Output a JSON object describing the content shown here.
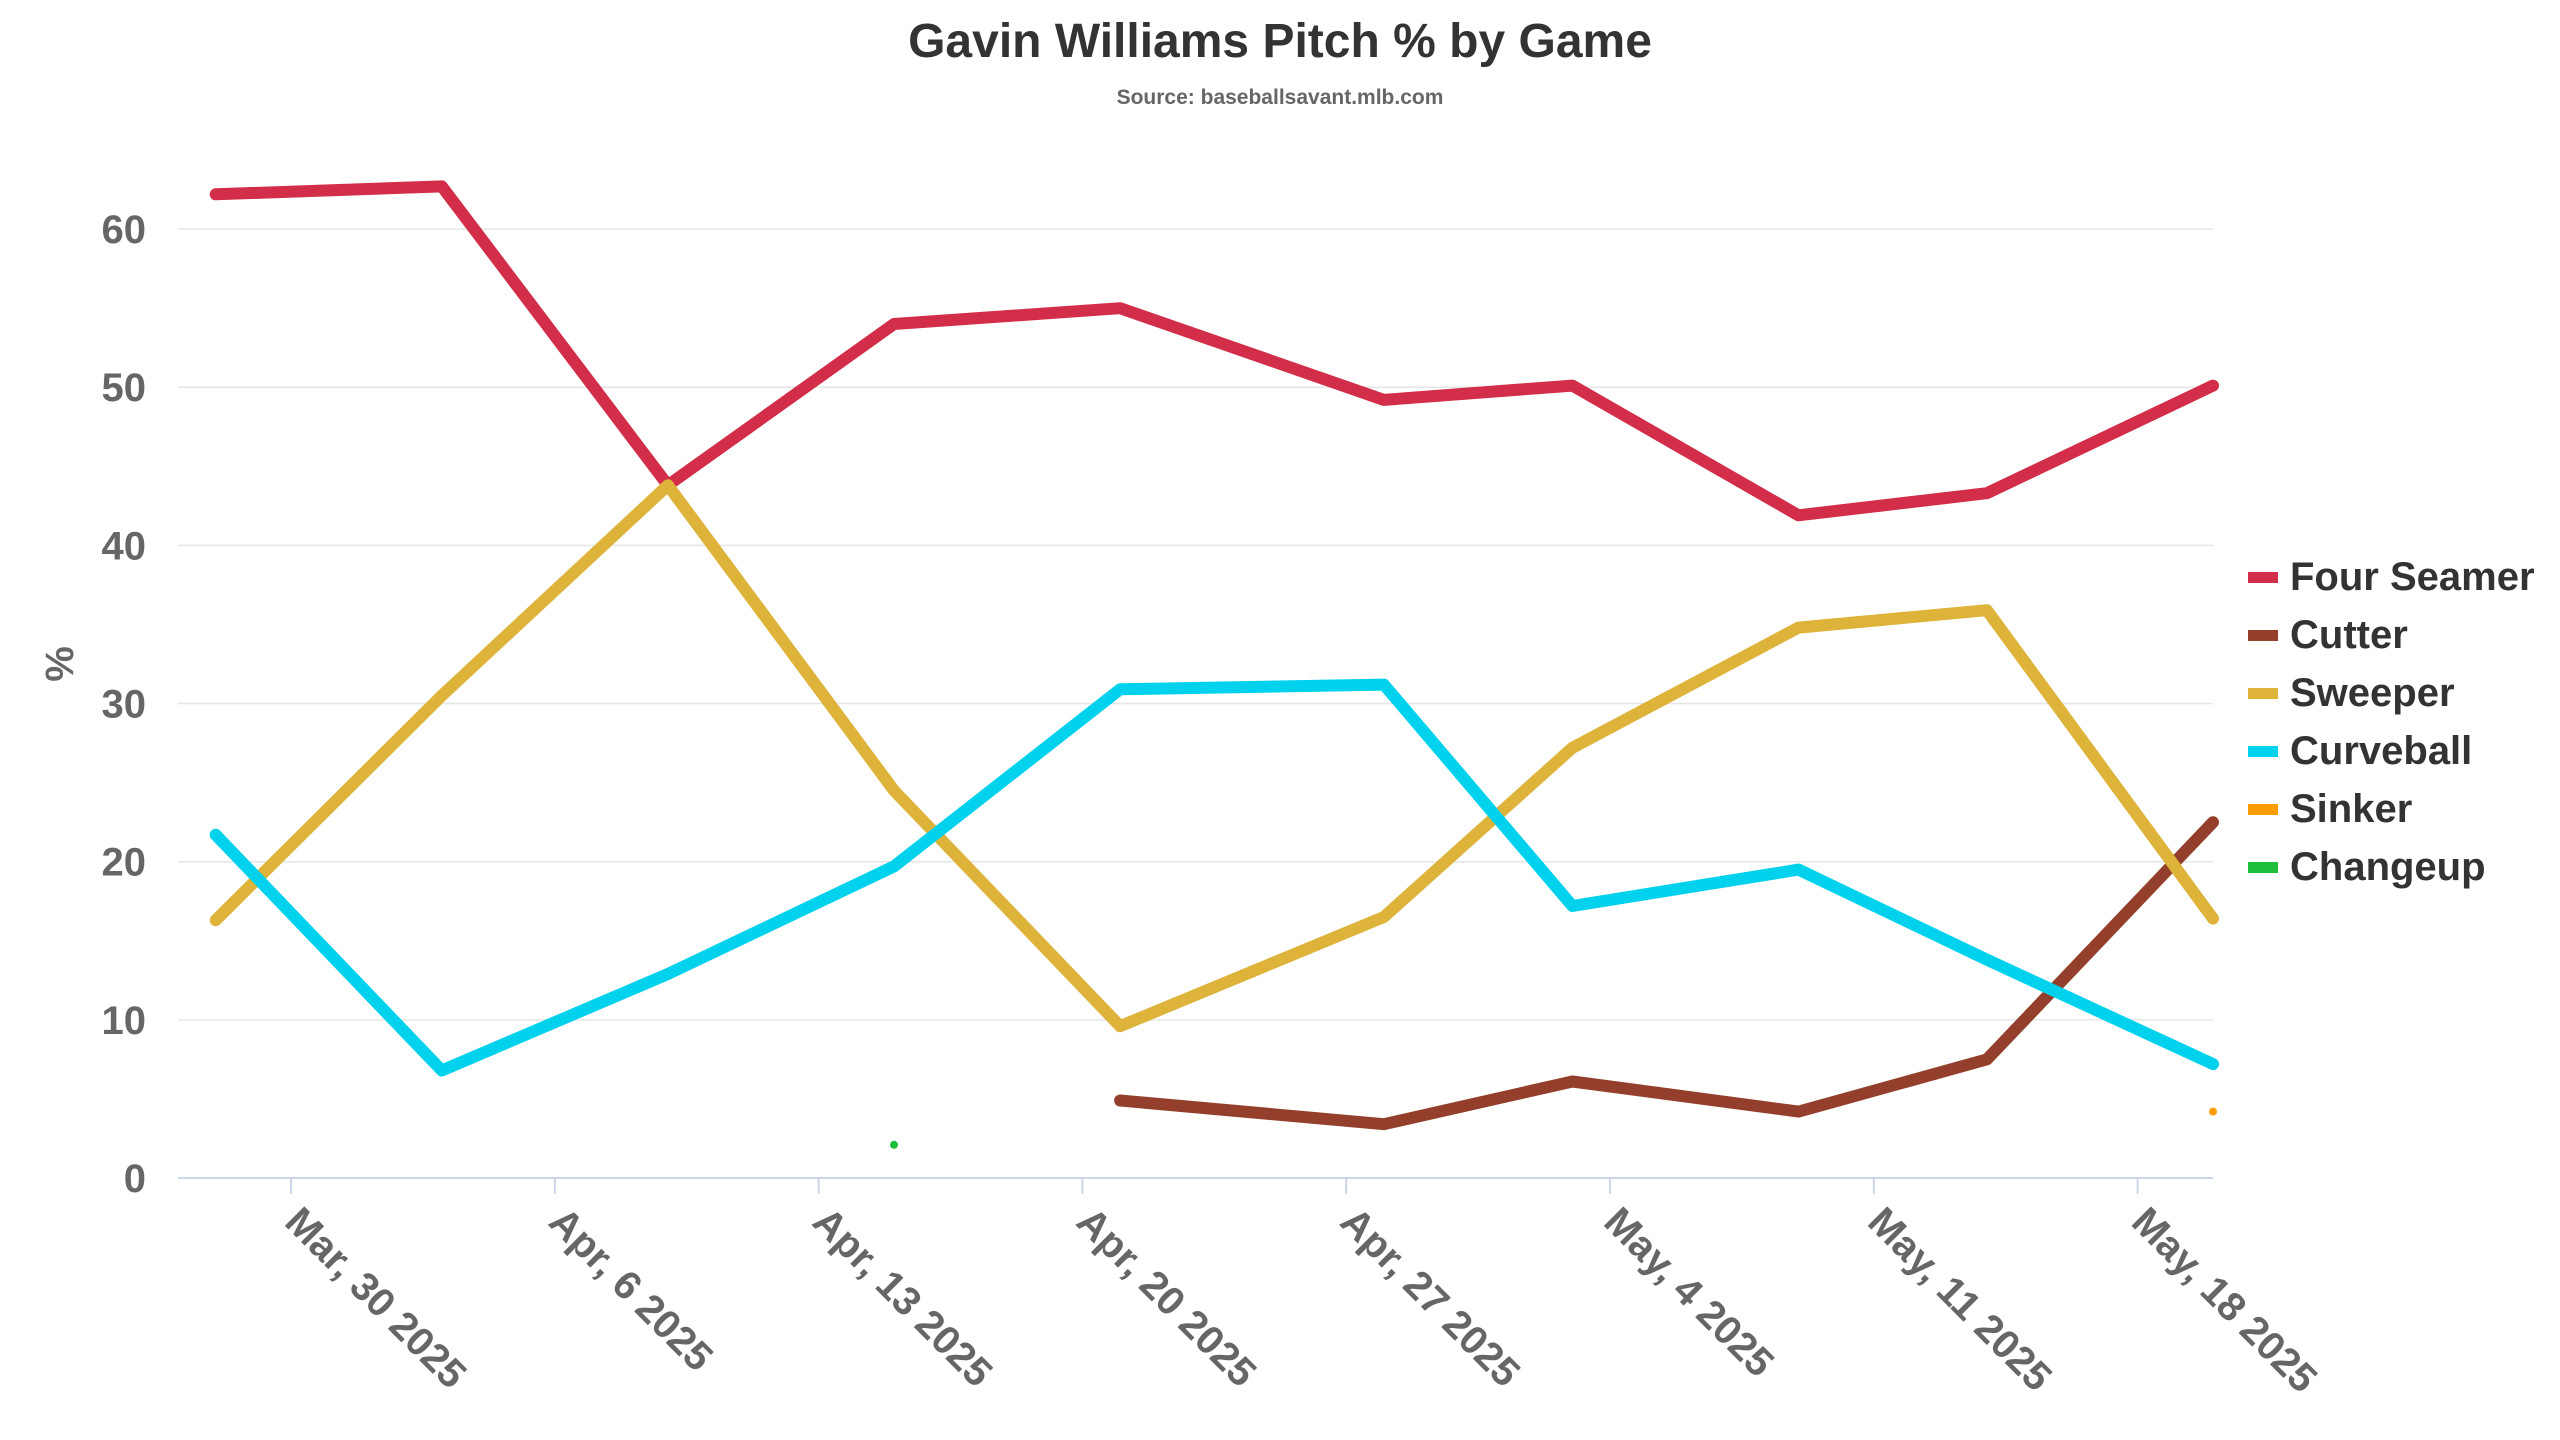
{
  "chart_data": {
    "type": "line",
    "title": "Gavin Williams Pitch % by Game",
    "subtitle": "Source: baseballsavant.mlb.com",
    "xlabel": "",
    "ylabel": "%",
    "xlim": [
      "2025-03-27",
      "2025-05-20"
    ],
    "ylim": [
      0,
      65
    ],
    "yticks": [
      0,
      10,
      20,
      30,
      40,
      50,
      60
    ],
    "xticks": [
      "2025-03-30",
      "2025-04-06",
      "2025-04-13",
      "2025-04-20",
      "2025-04-27",
      "2025-05-04",
      "2025-05-11",
      "2025-05-18"
    ],
    "xtick_labels": [
      "Mar, 30 2025",
      "Apr, 6 2025",
      "Apr, 13 2025",
      "Apr, 20 2025",
      "Apr, 27 2025",
      "May, 4 2025",
      "May, 11 2025",
      "May, 18 2025"
    ],
    "grid": true,
    "legend_position": "right",
    "series": [
      {
        "name": "Four Seamer",
        "color": "#d22d49",
        "points": [
          [
            "2025-03-28",
            62.2
          ],
          [
            "2025-04-03",
            62.7
          ],
          [
            "2025-04-09",
            43.8
          ],
          [
            "2025-04-15",
            54.0
          ],
          [
            "2025-04-21",
            55.0
          ],
          [
            "2025-04-28",
            49.2
          ],
          [
            "2025-05-03",
            50.1
          ],
          [
            "2025-05-09",
            41.9
          ],
          [
            "2025-05-14",
            43.3
          ],
          [
            "2025-05-20",
            50.1
          ]
        ]
      },
      {
        "name": "Cutter",
        "color": "#933f2c",
        "points": [
          [
            "2025-04-21",
            4.9
          ],
          [
            "2025-04-28",
            3.4
          ],
          [
            "2025-05-03",
            6.1
          ],
          [
            "2025-05-09",
            4.2
          ],
          [
            "2025-05-14",
            7.5
          ],
          [
            "2025-05-20",
            22.5
          ]
        ]
      },
      {
        "name": "Sweeper",
        "color": "#ddb33a",
        "points": [
          [
            "2025-03-28",
            16.3
          ],
          [
            "2025-04-03",
            30.5
          ],
          [
            "2025-04-09",
            43.8
          ],
          [
            "2025-04-15",
            24.5
          ],
          [
            "2025-04-21",
            9.6
          ],
          [
            "2025-04-28",
            16.5
          ],
          [
            "2025-05-03",
            27.2
          ],
          [
            "2025-05-09",
            34.8
          ],
          [
            "2025-05-14",
            35.9
          ],
          [
            "2025-05-20",
            16.4
          ]
        ]
      },
      {
        "name": "Curveball",
        "color": "#00d1ed",
        "points": [
          [
            "2025-03-28",
            21.7
          ],
          [
            "2025-04-03",
            6.8
          ],
          [
            "2025-04-09",
            12.9
          ],
          [
            "2025-04-15",
            19.7
          ],
          [
            "2025-04-21",
            30.9
          ],
          [
            "2025-04-28",
            31.2
          ],
          [
            "2025-05-03",
            17.2
          ],
          [
            "2025-05-09",
            19.5
          ],
          [
            "2025-05-14",
            13.8
          ],
          [
            "2025-05-20",
            7.2
          ]
        ]
      },
      {
        "name": "Sinker",
        "color": "#fe9d00",
        "points": [
          [
            "2025-05-20",
            4.2
          ]
        ]
      },
      {
        "name": "Changeup",
        "color": "#1dbe3a",
        "points": [
          [
            "2025-04-15",
            2.1
          ]
        ]
      }
    ]
  }
}
